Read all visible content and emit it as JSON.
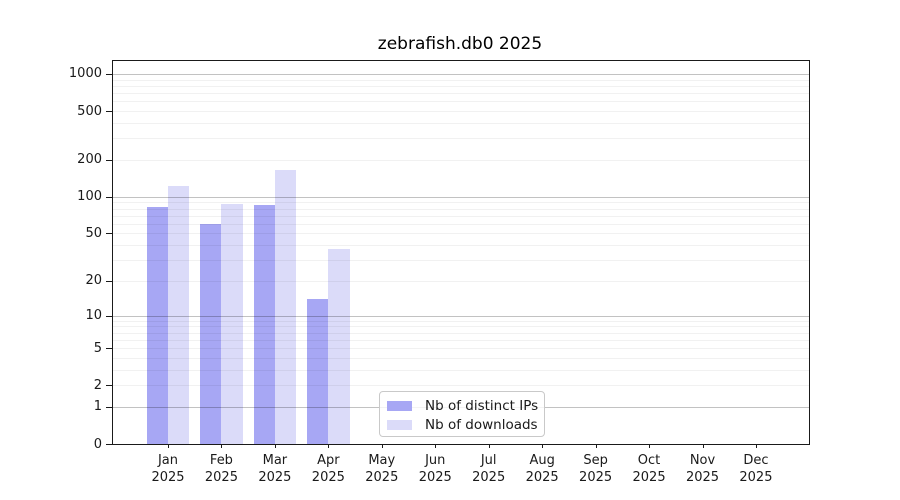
{
  "title": "zebrafish.db0 2025",
  "chart_data": {
    "type": "bar",
    "title": "zebrafish.db0 2025",
    "scale": "log1p",
    "grid": true,
    "categories": [
      "Jan",
      "Feb",
      "Mar",
      "Apr",
      "May",
      "Jun",
      "Jul",
      "Aug",
      "Sep",
      "Oct",
      "Nov",
      "Dec"
    ],
    "category_year": "2025",
    "series": [
      {
        "name": "Nb of distinct IPs",
        "color": "#a7a7f4",
        "values": [
          83,
          60,
          86,
          14,
          0,
          0,
          0,
          0,
          0,
          0,
          0,
          0
        ]
      },
      {
        "name": "Nb of downloads",
        "color": "#dbdbf9",
        "values": [
          123,
          88,
          166,
          37,
          0,
          0,
          0,
          0,
          0,
          0,
          0,
          0
        ]
      }
    ],
    "y_ticks": [
      0,
      1,
      2,
      5,
      10,
      20,
      50,
      100,
      200,
      500,
      1000
    ],
    "y_major_gridlines": [
      1,
      10,
      100,
      1000
    ],
    "ylim": [
      0,
      1280
    ],
    "legend": {
      "position": "lower center",
      "entries": [
        "Nb of distinct IPs",
        "Nb of downloads"
      ]
    }
  },
  "colors": {
    "bar_distinct_ips": "#a7a7f4",
    "bar_downloads": "#dbdbf9",
    "axis": "#1a1a1a",
    "major_grid": "rgba(0,0,0,0.24)",
    "minor_grid": "rgba(0,0,0,0.055)"
  }
}
